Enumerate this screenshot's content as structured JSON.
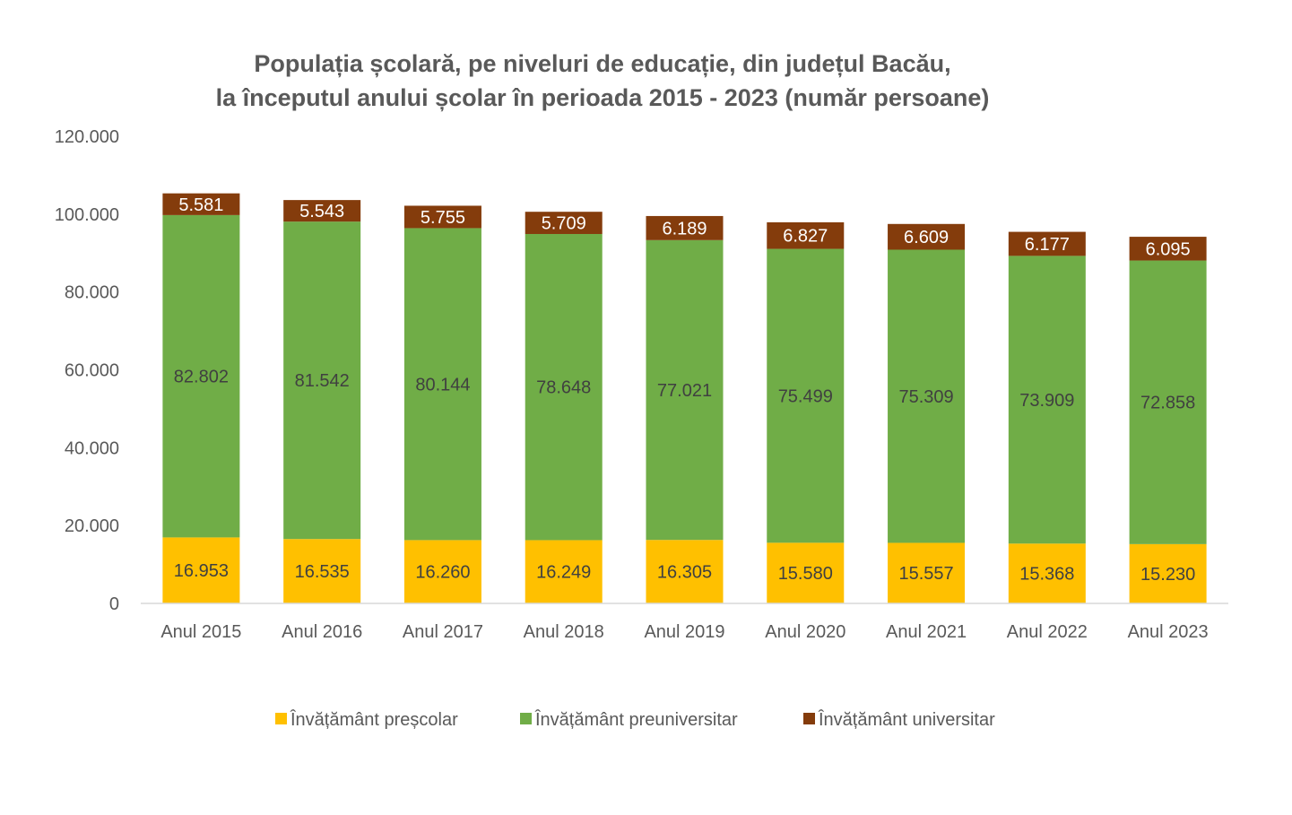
{
  "chart_data": {
    "type": "bar",
    "stacked": true,
    "title": "Populația școlară, pe niveluri de educație, din județul Bacău,",
    "subtitle": "la începutul anului școlar în perioada 2015 - 2023 (număr persoane)",
    "categories": [
      "Anul 2015",
      "Anul 2016",
      "Anul 2017",
      "Anul 2018",
      "Anul 2019",
      "Anul 2020",
      "Anul 2021",
      "Anul 2022",
      "Anul 2023"
    ],
    "series": [
      {
        "name": "Învățământ preșcolar",
        "color": "#FFC000",
        "values": [
          16953,
          16535,
          16260,
          16249,
          16305,
          15580,
          15557,
          15368,
          15230
        ],
        "labels": [
          "16.953",
          "16.535",
          "16.260",
          "16.249",
          "16.305",
          "15.580",
          "15.557",
          "15.368",
          "15.230"
        ]
      },
      {
        "name": "Învățământ preuniversitar",
        "color": "#70AD47",
        "values": [
          82802,
          81542,
          80144,
          78648,
          77021,
          75499,
          75309,
          73909,
          72858
        ],
        "labels": [
          "82.802",
          "81.542",
          "80.144",
          "78.648",
          "77.021",
          "75.499",
          "75.309",
          "73.909",
          "72.858"
        ]
      },
      {
        "name": "Învățământ universitar",
        "color": "#843C0C",
        "values": [
          5581,
          5543,
          5755,
          5709,
          6189,
          6827,
          6609,
          6177,
          6095
        ],
        "labels": [
          "5.581",
          "5.543",
          "5.755",
          "5.709",
          "6.189",
          "6.827",
          "6.609",
          "6.177",
          "6.095"
        ]
      }
    ],
    "ylim": [
      0,
      120000
    ],
    "yticks": [
      0,
      20000,
      40000,
      60000,
      80000,
      100000,
      120000
    ],
    "ytick_labels": [
      "0",
      "20.000",
      "40.000",
      "60.000",
      "80.000",
      "100.000",
      "120.000"
    ],
    "grid": false,
    "legend": "bottom"
  }
}
